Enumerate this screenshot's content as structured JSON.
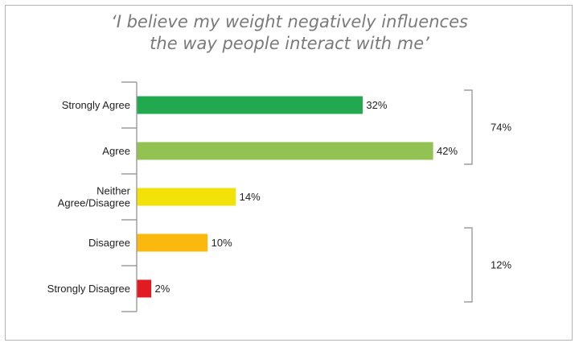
{
  "chart_data": {
    "type": "bar",
    "orientation": "horizontal",
    "title_lines": [
      "‘I believe my weight negatively influences",
      "the way people interact with me’"
    ],
    "categories": [
      [
        "Strongly Agree"
      ],
      [
        "Agree"
      ],
      [
        "Neither",
        "Agree/Disagree"
      ],
      [
        "Disagree"
      ],
      [
        "Strongly Disagree"
      ]
    ],
    "values": [
      32,
      42,
      14,
      10,
      2
    ],
    "value_labels": [
      "32%",
      "42%",
      "14%",
      "10%",
      "2%"
    ],
    "colors": [
      "#22a84f",
      "#92c352",
      "#f2e20a",
      "#fbb80e",
      "#e21b23"
    ],
    "xlim": [
      0,
      42
    ],
    "groups": [
      {
        "label": "74%",
        "from": 0,
        "to": 1
      },
      {
        "label": "12%",
        "from": 3,
        "to": 4
      }
    ],
    "grid": false,
    "legend": "none"
  }
}
